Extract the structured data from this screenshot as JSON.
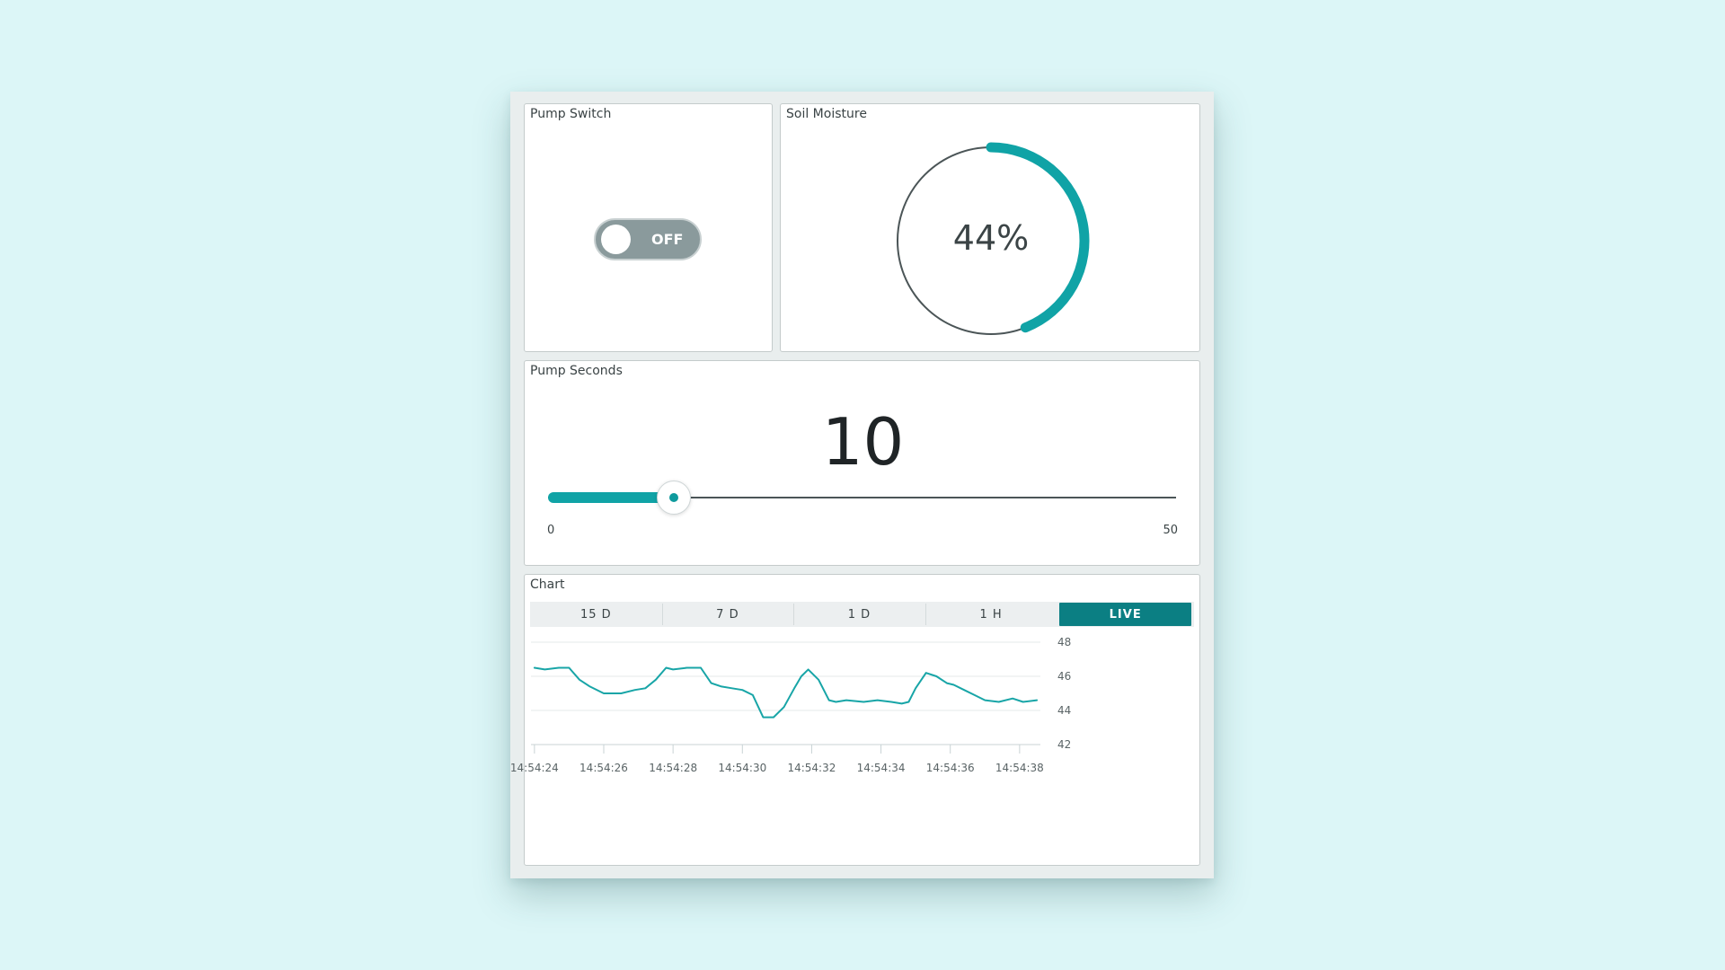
{
  "pump_switch": {
    "title": "Pump Switch",
    "state_label": "OFF",
    "is_on": false
  },
  "soil_moisture": {
    "title": "Soil Moisture",
    "value_label": "44%",
    "percent": 44,
    "colors": {
      "fill": "#10a3a6",
      "track": "#4b5557"
    }
  },
  "pump_seconds": {
    "title": "Pump Seconds",
    "value_label": "10",
    "value": 10,
    "min": 0,
    "max": 50,
    "min_label": "0",
    "max_label": "50",
    "colors": {
      "fill": "#10a3a6",
      "track": "#4b5557"
    }
  },
  "chart": {
    "title": "Chart",
    "ranges": [
      "15 D",
      "7 D",
      "1 D",
      "1 H",
      "LIVE"
    ],
    "active_range": "LIVE",
    "colors": {
      "line": "#18a5a7",
      "active_tab": "#0b7f83",
      "grid": "#e4e8e9"
    }
  },
  "chart_data": {
    "type": "line",
    "title": "",
    "xlabel": "",
    "ylabel": "",
    "x_tick_labels": [
      "14:54:24",
      "14:54:26",
      "14:54:28",
      "14:54:30",
      "14:54:32",
      "14:54:34",
      "14:54:36",
      "14:54:38"
    ],
    "x_ticks": [
      24,
      26,
      28,
      30,
      32,
      34,
      36,
      38
    ],
    "y_ticks": [
      42,
      44,
      46,
      48
    ],
    "xlim": [
      23.9,
      38.6
    ],
    "ylim": [
      42,
      48
    ],
    "y_axis_side": "right",
    "grid": true,
    "legend": "none",
    "series": [
      {
        "x": [
          24.0,
          24.3,
          24.7,
          25.0,
          25.3,
          25.6,
          26.0,
          26.5,
          26.9,
          27.2,
          27.5,
          27.8,
          28.0,
          28.4,
          28.8,
          29.1,
          29.4,
          29.7,
          30.0,
          30.3,
          30.6,
          30.9,
          31.2,
          31.5,
          31.7,
          31.9,
          32.2,
          32.5,
          32.7,
          33.0,
          33.5,
          33.9,
          34.3,
          34.6,
          34.8,
          35.0,
          35.3,
          35.6,
          35.9,
          36.1,
          36.4,
          36.7,
          37.0,
          37.4,
          37.8,
          38.1,
          38.5
        ],
        "y": [
          46.5,
          46.4,
          46.5,
          46.5,
          45.8,
          45.4,
          45.0,
          45.0,
          45.2,
          45.3,
          45.8,
          46.5,
          46.4,
          46.5,
          46.5,
          45.6,
          45.4,
          45.3,
          45.2,
          44.9,
          43.6,
          43.6,
          44.2,
          45.3,
          46.0,
          46.4,
          45.8,
          44.6,
          44.5,
          44.6,
          44.5,
          44.6,
          44.5,
          44.4,
          44.5,
          45.3,
          46.2,
          46.0,
          45.6,
          45.5,
          45.2,
          44.9,
          44.6,
          44.5,
          44.7,
          44.5,
          44.6
        ]
      }
    ]
  }
}
